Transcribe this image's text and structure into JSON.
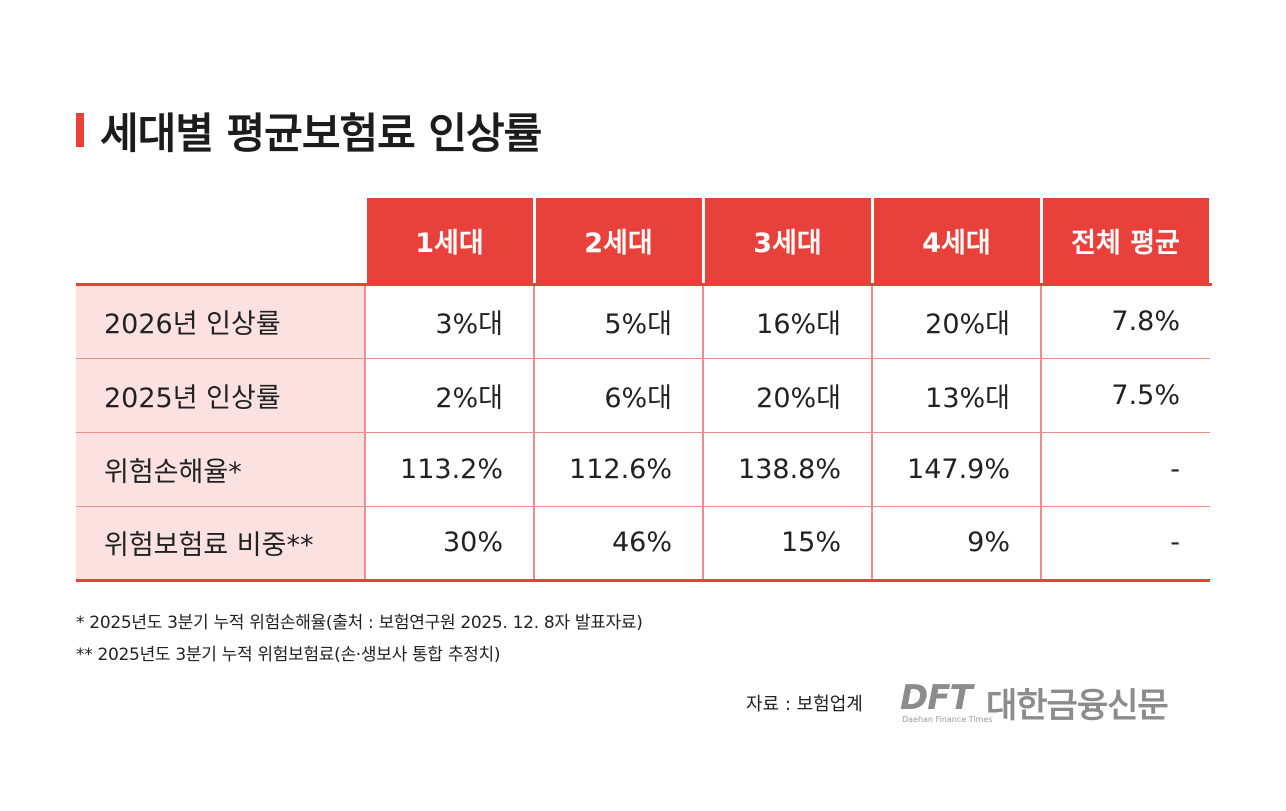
{
  "title": "세대별 평균보험료 인상률",
  "table": {
    "headers": [
      "1세대",
      "2세대",
      "3세대",
      "4세대",
      "전체 평균"
    ],
    "rows": [
      {
        "label": "2026년 인상률",
        "values": [
          "3%대",
          "5%대",
          "16%대",
          "20%대",
          "7.8%"
        ]
      },
      {
        "label": "2025년 인상률",
        "values": [
          "2%대",
          "6%대",
          "20%대",
          "13%대",
          "7.5%"
        ]
      },
      {
        "label": "위험손해율*",
        "values": [
          "113.2%",
          "112.6%",
          "138.8%",
          "147.9%",
          "-"
        ]
      },
      {
        "label": "위험보험료 비중**",
        "values": [
          "30%",
          "46%",
          "15%",
          "9%",
          "-"
        ]
      }
    ]
  },
  "notes": [
    "* 2025년도 3분기 누적 위험손해율(출처 : 보험연구원 2025. 12. 8자 발표자료)",
    "** 2025년도 3분기 누적 위험보험료(손·생보사 통합 추정치)"
  ],
  "source": "자료 : 보험업계",
  "logo": {
    "mark": "DFT",
    "name": "대한금융신문",
    "sub": "Daehan Finance Times"
  },
  "colors": {
    "accent": "#e8403b",
    "label_bg": "#fbe1e0",
    "divider": "#ec8f8b"
  }
}
